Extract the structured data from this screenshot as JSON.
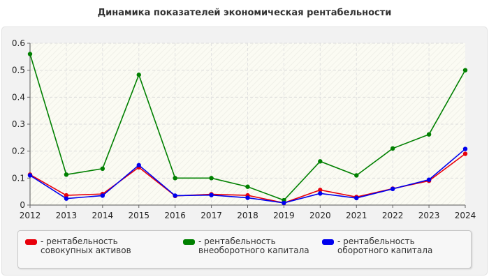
{
  "chart_data": {
    "type": "line",
    "title": "Динамика показателей экономическая рентабельности",
    "categories": [
      "2012",
      "2013",
      "2014",
      "2015",
      "2016",
      "2017",
      "2018",
      "2019",
      "2020",
      "2021",
      "2022",
      "2023",
      "2024"
    ],
    "ylim": [
      0,
      0.6
    ],
    "yticks": [
      "0",
      "0.1",
      "0.2",
      "0.3",
      "0.4",
      "0.5",
      "0.6"
    ],
    "grid": true,
    "legend_position": "bottom",
    "series": [
      {
        "name": "- рентабельность совокупных активов",
        "color": "#e8000b",
        "values": [
          0.113,
          0.036,
          0.041,
          0.14,
          0.034,
          0.04,
          0.036,
          0.008,
          0.056,
          0.03,
          0.061,
          0.09,
          0.19
        ]
      },
      {
        "name": "- рентабельность внеоборотного капитала",
        "color": "#008000",
        "values": [
          0.56,
          0.113,
          0.135,
          0.483,
          0.1,
          0.1,
          0.068,
          0.018,
          0.162,
          0.11,
          0.21,
          0.262,
          0.5
        ]
      },
      {
        "name": "- рентабельность оборотного капитала",
        "color": "#0000ee",
        "values": [
          0.11,
          0.024,
          0.035,
          0.148,
          0.035,
          0.037,
          0.027,
          0.008,
          0.043,
          0.026,
          0.06,
          0.094,
          0.208
        ]
      }
    ]
  }
}
